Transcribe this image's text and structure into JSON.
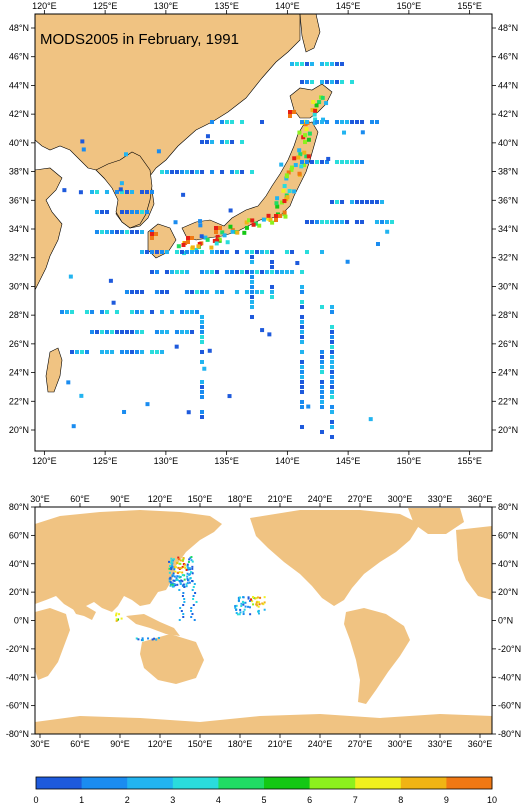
{
  "top_map": {
    "title": "MODS2005 in February, 1991",
    "lon_ticks": [
      "120°E",
      "125°E",
      "130°E",
      "135°E",
      "140°E",
      "145°E",
      "150°E",
      "155°E"
    ],
    "lat_ticks": [
      "48°N",
      "46°N",
      "44°N",
      "42°N",
      "40°N",
      "38°N",
      "36°N",
      "34°N",
      "32°N",
      "30°N",
      "28°N",
      "26°N",
      "24°N",
      "22°N",
      "20°N"
    ]
  },
  "bottom_map": {
    "lon_ticks": [
      "30°E",
      "60°E",
      "90°E",
      "120°E",
      "150°E",
      "180°E",
      "210°E",
      "240°E",
      "270°E",
      "300°E",
      "330°E",
      "360°E"
    ],
    "lat_ticks": [
      "80°N",
      "60°N",
      "40°N",
      "20°N",
      "0°N",
      "-20°N",
      "-40°N",
      "-60°N",
      "-80°N"
    ]
  },
  "colorbar": {
    "labels": [
      "0",
      "1",
      "2",
      "3",
      "4",
      "5",
      "6",
      "7",
      "8",
      "9",
      "10"
    ],
    "colors": [
      "#1e5adc",
      "#1a8cf0",
      "#22b4f0",
      "#2adcdc",
      "#20dc64",
      "#14c814",
      "#8cf01e",
      "#f0f01e",
      "#f0b414",
      "#f07814",
      "#e61e14"
    ]
  },
  "colors": {
    "land": "#f0c382",
    "ocean": "#ffffff",
    "frame": "#000000"
  }
}
